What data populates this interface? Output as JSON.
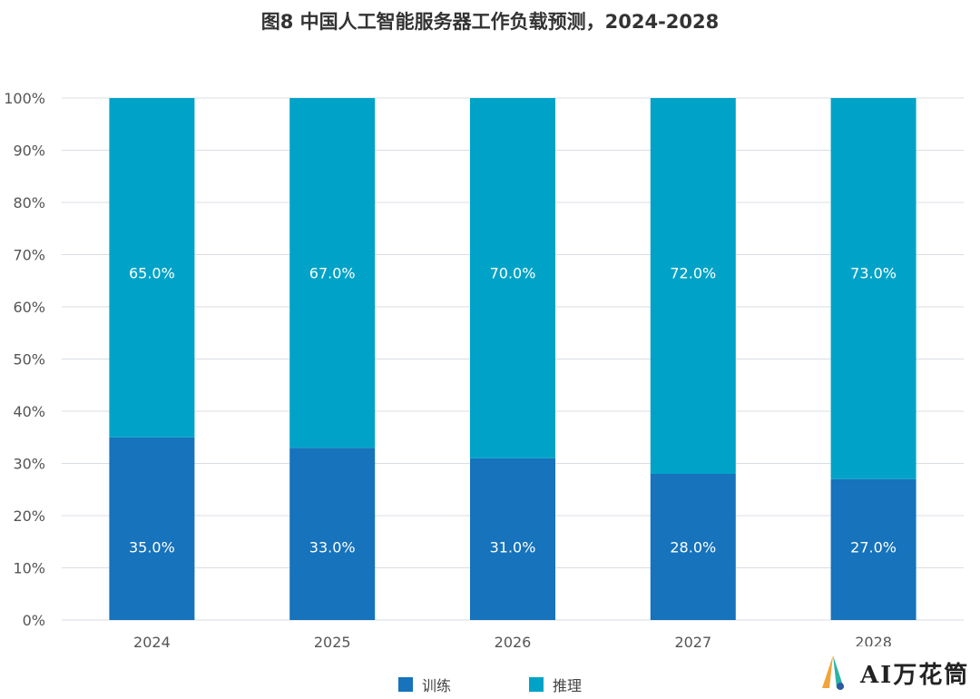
{
  "chart_data": {
    "type": "bar",
    "stacked": true,
    "title": "图8 中国人工智能服务器工作负载预测，2024-2028",
    "categories": [
      "2024",
      "2025",
      "2026",
      "2027",
      "2028"
    ],
    "series": [
      {
        "name": "训练",
        "values": [
          35.0,
          33.0,
          31.0,
          28.0,
          27.0
        ],
        "color": "#1673BC"
      },
      {
        "name": "推理",
        "values": [
          65.0,
          67.0,
          70.0,
          72.0,
          73.0
        ],
        "color": "#00A3C7"
      }
    ],
    "data_labels": {
      "训练": [
        "35.0%",
        "33.0%",
        "31.0%",
        "28.0%",
        "27.0%"
      ],
      "推理": [
        "65.0%",
        "67.0%",
        "70.0%",
        "72.0%",
        "73.0%"
      ]
    },
    "yticks": [
      "0%",
      "10%",
      "20%",
      "30%",
      "40%",
      "50%",
      "60%",
      "70%",
      "80%",
      "90%",
      "100%"
    ],
    "ylim": [
      0,
      100
    ],
    "grid": true,
    "legend_position": "bottom",
    "gridline_color": "#D9DEE3"
  },
  "watermark": {
    "text": "AI万花筒",
    "logo_colors": [
      "#F2A33A",
      "#2BB3A3",
      "#2C5AA0"
    ]
  }
}
